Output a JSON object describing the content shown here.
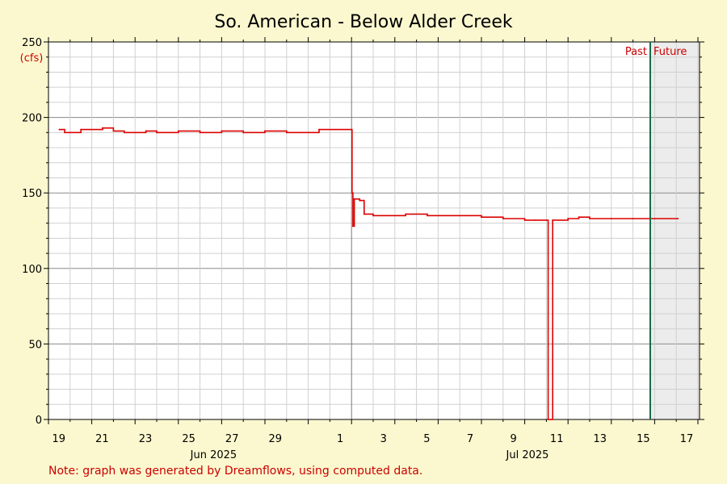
{
  "chart_data": {
    "type": "line",
    "title": "So. American - Below Alder Creek",
    "ylabel": "(cfs)",
    "xlabel": "",
    "ylim": [
      0,
      250
    ],
    "y_ticks": [
      0,
      50,
      100,
      150,
      200,
      250
    ],
    "x_tick_labels": [
      "19",
      "21",
      "23",
      "25",
      "27",
      "29",
      "1",
      "3",
      "5",
      "7",
      "9",
      "11",
      "13",
      "15",
      "17"
    ],
    "month_labels": [
      "Jun 2025",
      "Jul 2025"
    ],
    "past_label": "Past",
    "future_label": "Future",
    "grid": true,
    "line_color": "#dd0000",
    "series": [
      {
        "values": [
          {
            "x": "2025-05-18T12:00",
            "y": 192
          },
          {
            "x": "2025-05-18T18:00",
            "y": 190
          },
          {
            "x": "2025-05-19T12:00",
            "y": 192
          },
          {
            "x": "2025-05-20T12:00",
            "y": 193
          },
          {
            "x": "2025-05-21T00:00",
            "y": 191
          },
          {
            "x": "2025-05-21T12:00",
            "y": 190
          },
          {
            "x": "2025-05-22T12:00",
            "y": 191
          },
          {
            "x": "2025-05-23T00:00",
            "y": 190
          },
          {
            "x": "2025-05-24T00:00",
            "y": 191
          },
          {
            "x": "2025-05-25T00:00",
            "y": 190
          },
          {
            "x": "2025-05-26T00:00",
            "y": 191
          },
          {
            "x": "2025-05-27T00:00",
            "y": 190
          },
          {
            "x": "2025-05-28T00:00",
            "y": 191
          },
          {
            "x": "2025-05-29T00:00",
            "y": 190
          },
          {
            "x": "2025-05-30T12:00",
            "y": 192
          },
          {
            "x": "2025-06-01T00:00",
            "y": 192
          },
          {
            "x": "2025-06-01T00:30",
            "y": 150
          },
          {
            "x": "2025-06-01T01:30",
            "y": 128
          },
          {
            "x": "2025-06-01T03:00",
            "y": 146
          },
          {
            "x": "2025-06-01T09:00",
            "y": 145
          },
          {
            "x": "2025-06-01T14:00",
            "y": 136
          },
          {
            "x": "2025-06-02T00:00",
            "y": 135
          },
          {
            "x": "2025-06-03T12:00",
            "y": 136
          },
          {
            "x": "2025-06-04T12:00",
            "y": 135
          },
          {
            "x": "2025-06-06T12:00",
            "y": 135
          },
          {
            "x": "2025-06-07T00:00",
            "y": 134
          },
          {
            "x": "2025-06-08T00:00",
            "y": 133
          },
          {
            "x": "2025-06-09T00:00",
            "y": 132
          },
          {
            "x": "2025-06-09T12:00",
            "y": 132
          },
          {
            "x": "2025-06-10T00:00",
            "y": 132
          },
          {
            "x": "2025-06-10T02:00",
            "y": 0
          },
          {
            "x": "2025-06-10T05:00",
            "y": 0
          },
          {
            "x": "2025-06-10T07:00",
            "y": 132
          },
          {
            "x": "2025-06-11T00:00",
            "y": 133
          },
          {
            "x": "2025-06-11T12:00",
            "y": 134
          },
          {
            "x": "2025-06-12T00:00",
            "y": 133
          },
          {
            "x": "2025-06-13T00:00",
            "y": 133
          },
          {
            "x": "2025-06-14T00:00",
            "y": 133
          },
          {
            "x": "2025-06-15T00:00",
            "y": 133
          },
          {
            "x": "2025-06-16T02:00",
            "y": 133
          }
        ]
      }
    ]
  },
  "note": "Note: graph was generated by Dreamflows, using computed data."
}
